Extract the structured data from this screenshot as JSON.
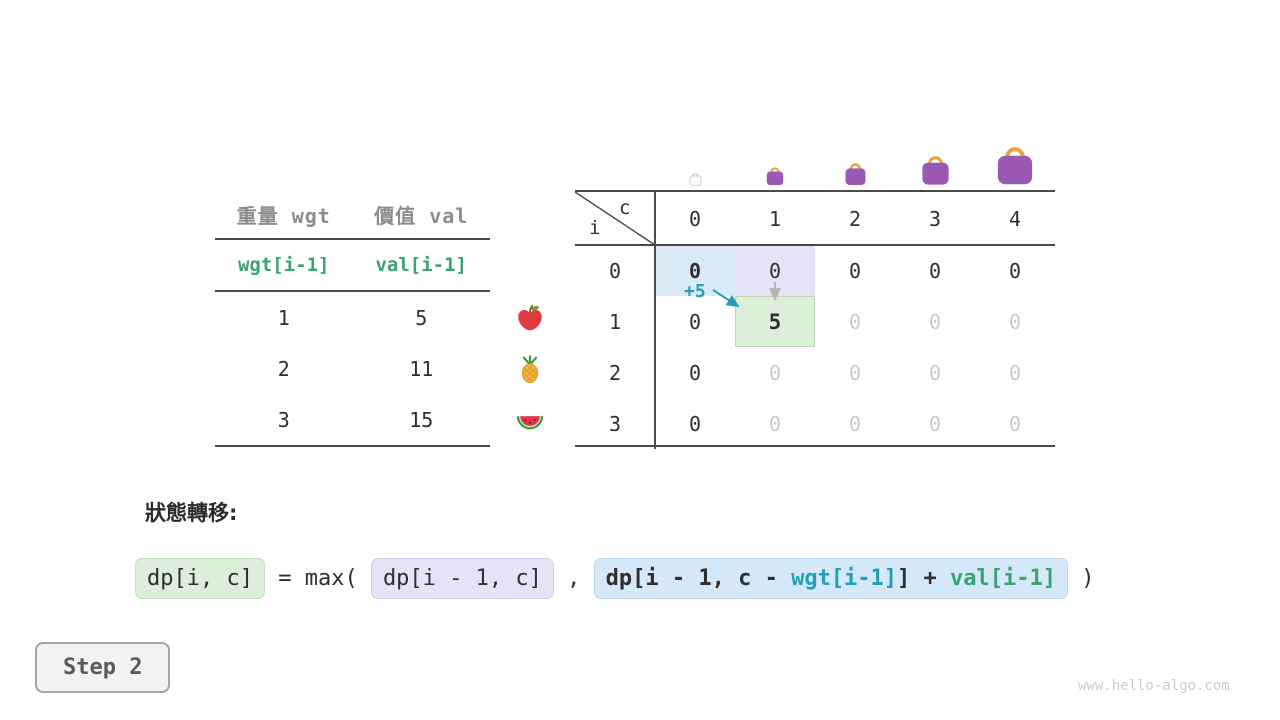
{
  "colors": {
    "line": "#4a4a4a",
    "text": "#2f2f2f",
    "gray_header": "#8c8c8c",
    "dim": "#c9c9c9",
    "green": "#3ba272",
    "teal": "#21a1b5",
    "hl_blue": "#d9eaf7",
    "hl_lavender": "#e4e3f7",
    "hl_green": "#ddefdb",
    "chip_blue": "#d5e8f7",
    "arrow_gray": "#b5b5b5",
    "bag_body": "#9b59b6",
    "bag_handle": "#e8a33d",
    "bag_empty": "#cccccc",
    "watermark": "#cccccc",
    "step_text": "#5a5a5a",
    "step_border": "#a3a3a3",
    "step_bg": "#f2f2f2"
  },
  "left_table": {
    "headers": [
      "重量 wgt",
      "價值 val"
    ],
    "formula_row": [
      "wgt[i-1]",
      "val[i-1]"
    ],
    "rows": [
      {
        "wgt": "1",
        "val": "5",
        "icon": "apple"
      },
      {
        "wgt": "2",
        "val": "11",
        "icon": "pineapple"
      },
      {
        "wgt": "3",
        "val": "15",
        "icon": "watermelon"
      }
    ]
  },
  "dp_table": {
    "corner": {
      "col_label": "c",
      "row_label": "i"
    },
    "col_headers": [
      "0",
      "1",
      "2",
      "3",
      "4"
    ],
    "row_headers": [
      "0",
      "1",
      "2",
      "3"
    ],
    "cells": [
      [
        "0",
        "0",
        "0",
        "0",
        "0"
      ],
      [
        "0",
        "5",
        "0",
        "0",
        "0"
      ],
      [
        "0",
        "0",
        "0",
        "0",
        "0"
      ],
      [
        "0",
        "0",
        "0",
        "0",
        "0"
      ]
    ],
    "cell_styles": [
      [
        "hl-blue bold",
        "hl-lavender",
        "",
        "",
        ""
      ],
      [
        "",
        "hl-green bold",
        "dim",
        "dim",
        "dim"
      ],
      [
        "",
        "dim",
        "dim",
        "dim",
        "dim"
      ],
      [
        "",
        "dim",
        "dim",
        "dim",
        "dim"
      ]
    ],
    "bags": [
      {
        "variant": "empty",
        "size": 15
      },
      {
        "variant": "full",
        "size": 22
      },
      {
        "variant": "full",
        "size": 27
      },
      {
        "variant": "full",
        "size": 35
      },
      {
        "variant": "full",
        "size": 46
      }
    ],
    "annotation": {
      "plus_label": "+5"
    }
  },
  "formula": {
    "label": "狀態轉移:",
    "lhs": "dp[i, c]",
    "eq": " = max( ",
    "term1": "dp[i - 1, c]",
    "comma": " , ",
    "term2_prefix": "dp[i - 1, c - ",
    "term2_wgt": "wgt[i-1]",
    "term2_mid": "] + ",
    "term2_val": "val[i-1]",
    "close": " )"
  },
  "step_badge": {
    "label": "Step 2"
  },
  "watermark": "www.hello-algo.com"
}
